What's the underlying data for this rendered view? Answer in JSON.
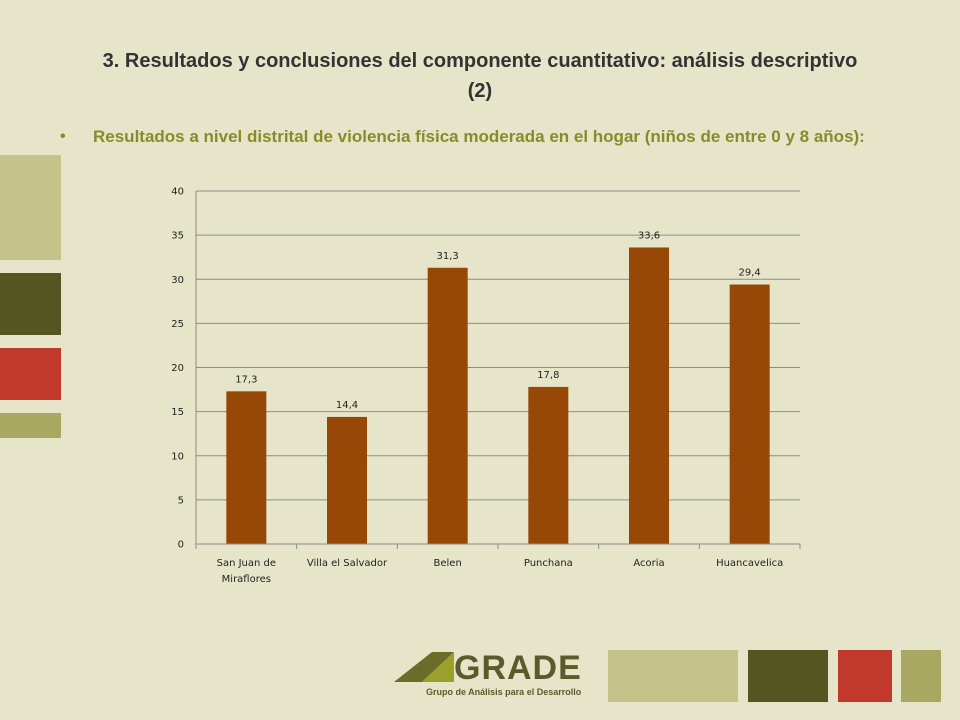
{
  "slide": {
    "title": "3. Resultados y conclusiones del componente cuantitativo: análisis descriptivo  (2)",
    "bullet_symbol": "•",
    "bullet_text": "Resultados a nivel distrital de violencia física moderada en el hogar (niños de entre 0 y 8 años):"
  },
  "logo": {
    "word": "GRADE",
    "tagline": "Grupo de Análisis para el Desarrollo"
  },
  "colors": {
    "background": "#e6e5c9",
    "bar": "#974706",
    "olive_light": "#c4c38a",
    "olive_dark": "#555522",
    "red": "#c0392b",
    "olive_mid": "#a9a862"
  },
  "chart_data": {
    "type": "bar",
    "categories": [
      "San Juan de Miraflores",
      "Villa el Salvador",
      "Belen",
      "Punchana",
      "Acoria",
      "Huancavelica"
    ],
    "category_lines": [
      [
        "San Juan de",
        "Miraflores"
      ],
      [
        "Villa el Salvador"
      ],
      [
        "Belen"
      ],
      [
        "Punchana"
      ],
      [
        "Acoria"
      ],
      [
        "Huancavelica"
      ]
    ],
    "values": [
      17.3,
      14.4,
      31.3,
      17.8,
      33.6,
      29.4
    ],
    "data_labels": [
      "17,3",
      "14,4",
      "31,3",
      "17,8",
      "33,6",
      "29,4"
    ],
    "yticks": [
      "0",
      "5",
      "10",
      "15",
      "20",
      "25",
      "30",
      "35",
      "40"
    ],
    "ylim": [
      0,
      40
    ],
    "grid": true,
    "legend": "none"
  }
}
